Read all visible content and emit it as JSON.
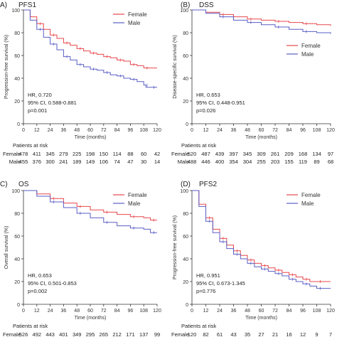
{
  "chart_data": [
    {
      "type": "line",
      "panel_label": "A)",
      "title": "PFS1",
      "ylabel": "Progression-free survival (%)",
      "xlabel": "Time (months)",
      "xlim": [
        0,
        120
      ],
      "ylim": [
        0,
        100
      ],
      "x_ticks": [
        "0",
        "12",
        "24",
        "36",
        "48",
        "60",
        "72",
        "84",
        "96",
        "108",
        "120"
      ],
      "y_ticks": [
        "0",
        "20",
        "40",
        "60",
        "80",
        "100"
      ],
      "grid": false,
      "legend_position": "top-right",
      "series": [
        {
          "name": "Female",
          "color": "#e8474c",
          "x": [
            0,
            6,
            12,
            18,
            24,
            30,
            36,
            42,
            48,
            54,
            60,
            66,
            72,
            78,
            84,
            90,
            96,
            102,
            108,
            114,
            120
          ],
          "y": [
            100,
            94,
            88,
            83,
            78,
            75,
            71,
            69,
            66,
            64,
            62,
            61,
            59,
            58,
            56,
            55,
            52,
            51,
            49,
            49,
            49
          ]
        },
        {
          "name": "Male",
          "color": "#5a5fc4",
          "x": [
            0,
            6,
            12,
            18,
            24,
            30,
            36,
            42,
            48,
            54,
            60,
            66,
            72,
            78,
            84,
            90,
            96,
            102,
            108,
            110,
            114,
            120
          ],
          "y": [
            100,
            91,
            83,
            76,
            70,
            65,
            59,
            56,
            52,
            50,
            48,
            47,
            45,
            43,
            42,
            40,
            39,
            37,
            34,
            32,
            32,
            32
          ]
        }
      ],
      "annotations": [
        "HR, 0.720",
        "95% CI, 0.588-0.881",
        "p=0.001"
      ],
      "risk_table": {
        "title": "Patients at risk",
        "rows": [
          {
            "label": "Female",
            "values": [
              "478",
              "411",
              "345",
              "279",
              "225",
              "198",
              "150",
              "114",
              "88",
              "60",
              "42"
            ]
          },
          {
            "label": "Male",
            "values": [
              "455",
              "376",
              "300",
              "241",
              "189",
              "149",
              "106",
              "74",
              "47",
              "30",
              "14"
            ]
          }
        ]
      }
    },
    {
      "type": "line",
      "panel_label": "(B)",
      "title": "DSS",
      "ylabel": "Disease-specific survival (%)",
      "xlabel": "Time (months)",
      "xlim": [
        0,
        120
      ],
      "ylim": [
        0,
        100
      ],
      "x_ticks": [
        "0",
        "12",
        "24",
        "36",
        "48",
        "60",
        "72",
        "84",
        "96",
        "108",
        "120"
      ],
      "y_ticks": [
        "0",
        "20",
        "40",
        "60",
        "80",
        "100"
      ],
      "grid": false,
      "legend_position": "center-right",
      "series": [
        {
          "name": "Female",
          "color": "#e8474c",
          "x": [
            0,
            12,
            24,
            36,
            48,
            60,
            72,
            84,
            96,
            108,
            120
          ],
          "y": [
            100,
            98,
            96,
            94,
            92,
            91,
            90,
            89,
            88,
            87,
            86
          ]
        },
        {
          "name": "Male",
          "color": "#5a5fc4",
          "x": [
            0,
            12,
            24,
            36,
            48,
            60,
            72,
            84,
            96,
            108,
            120
          ],
          "y": [
            100,
            97,
            94,
            91,
            89,
            87,
            85,
            83,
            81,
            80,
            79
          ]
        }
      ],
      "annotations": [
        "HR, 0.653",
        "95% CI, 0.448-0.951",
        "p=0.026"
      ],
      "risk_table": {
        "title": "Patients at risk",
        "rows": [
          {
            "label": "Female",
            "values": [
              "520",
              "487",
              "439",
              "397",
              "345",
              "309",
              "261",
              "209",
              "168",
              "134",
              "97"
            ]
          },
          {
            "label": "Male",
            "values": [
              "488",
              "446",
              "400",
              "354",
              "304",
              "255",
              "203",
              "155",
              "119",
              "89",
              "68"
            ]
          }
        ]
      }
    },
    {
      "type": "line",
      "panel_label": "C)",
      "title": "OS",
      "ylabel": "Overall survival (%)",
      "xlabel": "Time (months)",
      "xlim": [
        0,
        120
      ],
      "ylim": [
        0,
        100
      ],
      "x_ticks": [
        "0",
        "12",
        "24",
        "36",
        "48",
        "60",
        "72",
        "84",
        "96",
        "108",
        "120"
      ],
      "y_ticks": [
        "0",
        "20",
        "40",
        "60",
        "80",
        "100"
      ],
      "grid": false,
      "legend_position": "top-right",
      "series": [
        {
          "name": "Female",
          "color": "#e8474c",
          "x": [
            0,
            12,
            24,
            36,
            48,
            60,
            72,
            84,
            96,
            108,
            114,
            120
          ],
          "y": [
            100,
            97,
            93,
            89,
            86,
            83,
            81,
            79,
            77,
            76,
            74,
            74
          ]
        },
        {
          "name": "Male",
          "color": "#5a5fc4",
          "x": [
            0,
            12,
            24,
            36,
            48,
            60,
            72,
            84,
            96,
            108,
            114,
            120
          ],
          "y": [
            100,
            95,
            90,
            85,
            80,
            76,
            72,
            69,
            67,
            66,
            63,
            63
          ]
        }
      ],
      "annotations": [
        "HR, 0.653",
        "95% CI, 0.501-0.853",
        "p=0.002"
      ],
      "risk_table": {
        "title": "Patients at risk",
        "rows": [
          {
            "label": "Female",
            "values": [
              "526",
              "492",
              "443",
              "401",
              "349",
              "295",
              "265",
              "212",
              "171",
              "137",
              "99"
            ]
          },
          {
            "label": "Male",
            "values": [
              "497",
              "453",
              "407",
              "361",
              "309",
              "260",
              "208",
              "164",
              "129",
              "96",
              "73"
            ]
          }
        ]
      }
    },
    {
      "type": "line",
      "panel_label": "(D)",
      "title": "PFS2",
      "ylabel": "Progression-free survival (%)",
      "xlabel": "Time (months)",
      "xlim": [
        0,
        120
      ],
      "ylim": [
        0,
        100
      ],
      "x_ticks": [
        "0",
        "12",
        "24",
        "36",
        "48",
        "60",
        "72",
        "84",
        "96",
        "108",
        "120"
      ],
      "y_ticks": [
        "0",
        "20",
        "40",
        "60",
        "80",
        "100"
      ],
      "grid": false,
      "legend_position": "top-right",
      "series": [
        {
          "name": "Female",
          "color": "#e8474c",
          "x": [
            0,
            6,
            12,
            18,
            24,
            30,
            36,
            42,
            48,
            54,
            60,
            66,
            72,
            78,
            84,
            90,
            96,
            102,
            108,
            114,
            120
          ],
          "y": [
            100,
            88,
            76,
            66,
            58,
            52,
            47,
            43,
            39,
            36,
            34,
            32,
            30,
            28,
            26,
            24,
            22,
            20,
            20,
            20,
            20
          ]
        },
        {
          "name": "Male",
          "color": "#5a5fc4",
          "x": [
            0,
            6,
            12,
            18,
            24,
            30,
            36,
            42,
            48,
            54,
            60,
            66,
            72,
            78,
            84,
            90,
            96,
            102,
            108,
            114,
            120
          ],
          "y": [
            100,
            86,
            73,
            63,
            55,
            49,
            44,
            40,
            36,
            33,
            31,
            29,
            27,
            25,
            22,
            20,
            18,
            16,
            14,
            14,
            14
          ]
        }
      ],
      "annotations": [
        "HR, 0.951",
        "95% CI, 0.673-1.345",
        "p=0.776"
      ],
      "risk_table": {
        "title": "Patients at risk",
        "rows": [
          {
            "label": "Female",
            "values": [
              "120",
              "82",
              "61",
              "43",
              "35",
              "27",
              "21",
              "16",
              "12",
              "9",
              "7"
            ]
          },
          {
            "label": "Male",
            "values": [
              "143",
              "104",
              "81",
              "61",
              "47",
              "39",
              "28",
              "20",
              "15",
              "10",
              "6"
            ]
          }
        ]
      }
    }
  ]
}
